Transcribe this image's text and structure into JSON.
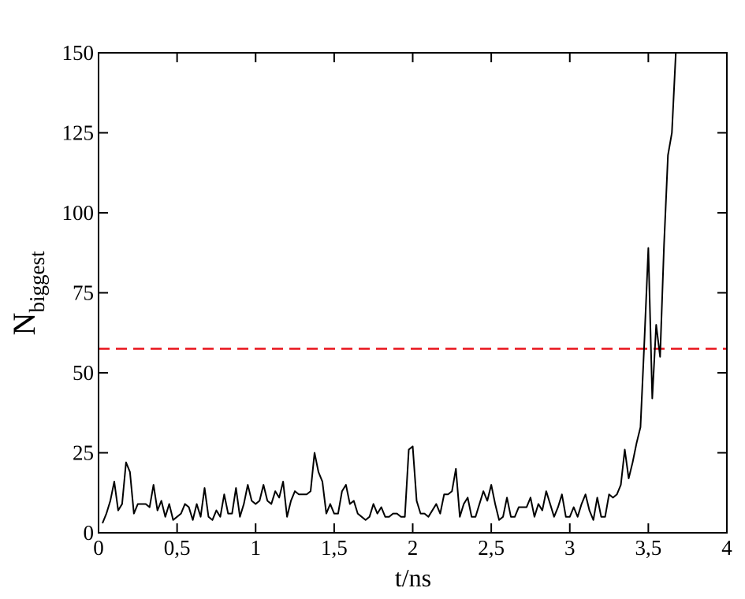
{
  "chart_data": {
    "type": "line",
    "xlabel": "t/ns",
    "ylabel": "N",
    "ylabel_sub": "biggest",
    "color": "#000000",
    "x": [
      0.025,
      0.05,
      0.075,
      0.1,
      0.125,
      0.15,
      0.175,
      0.2,
      0.225,
      0.25,
      0.275,
      0.3,
      0.325,
      0.35,
      0.375,
      0.4,
      0.425,
      0.45,
      0.475,
      0.5,
      0.525,
      0.55,
      0.575,
      0.6,
      0.625,
      0.65,
      0.675,
      0.7,
      0.725,
      0.75,
      0.775,
      0.8,
      0.825,
      0.85,
      0.875,
      0.9,
      0.925,
      0.95,
      0.975,
      1.0,
      1.025,
      1.05,
      1.075,
      1.1,
      1.125,
      1.15,
      1.175,
      1.2,
      1.225,
      1.25,
      1.275,
      1.3,
      1.325,
      1.35,
      1.375,
      1.4,
      1.425,
      1.45,
      1.475,
      1.5,
      1.525,
      1.55,
      1.575,
      1.6,
      1.625,
      1.65,
      1.675,
      1.7,
      1.725,
      1.75,
      1.775,
      1.8,
      1.825,
      1.85,
      1.875,
      1.9,
      1.925,
      1.95,
      1.975,
      2.0,
      2.025,
      2.05,
      2.075,
      2.1,
      2.125,
      2.15,
      2.175,
      2.2,
      2.225,
      2.25,
      2.275,
      2.3,
      2.325,
      2.35,
      2.375,
      2.4,
      2.425,
      2.45,
      2.475,
      2.5,
      2.525,
      2.55,
      2.575,
      2.6,
      2.625,
      2.65,
      2.675,
      2.7,
      2.725,
      2.75,
      2.775,
      2.8,
      2.825,
      2.85,
      2.875,
      2.9,
      2.925,
      2.95,
      2.975,
      3.0,
      3.025,
      3.05,
      3.075,
      3.1,
      3.125,
      3.15,
      3.175,
      3.2,
      3.225,
      3.25,
      3.275,
      3.3,
      3.325,
      3.35,
      3.375,
      3.4,
      3.425,
      3.45,
      3.475,
      3.5,
      3.525,
      3.55,
      3.575,
      3.6,
      3.625,
      3.65,
      3.675
    ],
    "values": [
      3,
      6,
      10,
      16,
      7,
      9,
      22,
      19,
      6,
      9,
      9,
      9,
      8,
      15,
      7,
      10,
      5,
      9,
      4,
      5,
      6,
      9,
      8,
      4,
      9,
      5,
      14,
      5,
      4,
      7,
      5,
      12,
      6,
      6,
      14,
      5,
      9,
      15,
      10,
      9,
      10,
      15,
      10,
      9,
      13,
      11,
      16,
      5,
      10,
      13,
      12,
      12,
      12,
      13,
      25,
      19,
      16,
      6,
      9,
      6,
      6,
      13,
      15,
      9,
      10,
      6,
      5,
      4,
      5,
      9,
      6,
      8,
      5,
      5,
      6,
      6,
      5,
      5,
      26,
      27,
      10,
      6,
      6,
      5,
      7,
      9,
      6,
      12,
      12,
      13,
      20,
      5,
      9,
      11,
      5,
      5,
      9,
      13,
      10,
      15,
      9,
      4,
      5,
      11,
      5,
      5,
      8,
      8,
      8,
      11,
      5,
      9,
      7,
      13,
      9,
      5,
      8,
      12,
      5,
      5,
      8,
      5,
      9,
      12,
      7,
      4,
      11,
      5,
      5,
      12,
      11,
      12,
      15,
      26,
      17,
      22,
      28,
      33,
      60,
      89,
      42,
      65,
      55,
      90,
      118,
      125,
      150
    ],
    "reference_line": {
      "y": 57.5,
      "color": "#e8121a",
      "style": "dashed"
    },
    "xlim": [
      0,
      4
    ],
    "xticks": [
      0,
      {
        "value": 0.5,
        "label": "0,5"
      },
      1,
      {
        "value": 1.5,
        "label": "1,5"
      },
      2,
      {
        "value": 2.5,
        "label": "2,5"
      },
      3,
      {
        "value": 3.5,
        "label": "3,5"
      },
      4
    ],
    "ylim": [
      0,
      150
    ],
    "yticks": [
      0,
      25,
      50,
      75,
      100,
      125,
      150
    ],
    "grid": false
  }
}
